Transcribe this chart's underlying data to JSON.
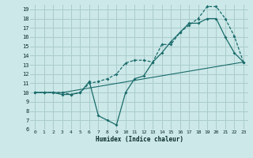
{
  "xlabel": "Humidex (Indice chaleur)",
  "xlim": [
    -0.5,
    23.5
  ],
  "ylim": [
    6,
    19.5
  ],
  "xticks": [
    0,
    1,
    2,
    3,
    4,
    5,
    6,
    7,
    8,
    9,
    10,
    11,
    12,
    13,
    14,
    15,
    16,
    17,
    18,
    19,
    20,
    21,
    22,
    23
  ],
  "yticks": [
    6,
    7,
    8,
    9,
    10,
    11,
    12,
    13,
    14,
    15,
    16,
    17,
    18,
    19
  ],
  "bg_color": "#cce8e8",
  "line_color": "#1a6b6b",
  "grid_color": "#aacccc",
  "line1_x": [
    0,
    3,
    23
  ],
  "line1_y": [
    10,
    10,
    13.3
  ],
  "line2_x": [
    0,
    1,
    2,
    3,
    4,
    5,
    6,
    7,
    8,
    9,
    10,
    11,
    12,
    13,
    14,
    15,
    16,
    17,
    18,
    19,
    20,
    21,
    22,
    23
  ],
  "line2_y": [
    10,
    10,
    10,
    10,
    9.8,
    10.0,
    11.0,
    11.2,
    11.5,
    12.0,
    13.2,
    13.5,
    13.5,
    13.3,
    15.2,
    15.2,
    16.5,
    17.3,
    18.0,
    19.3,
    19.3,
    18.0,
    16.1,
    13.3
  ],
  "line3_x": [
    0,
    1,
    2,
    3,
    4,
    5,
    6,
    7,
    8,
    9,
    10,
    11,
    12,
    13,
    14,
    15,
    16,
    17,
    18,
    19,
    20,
    21,
    22,
    23
  ],
  "line3_y": [
    10,
    10,
    10,
    9.8,
    9.8,
    10.0,
    11.2,
    7.5,
    7.0,
    6.5,
    10.0,
    11.5,
    11.8,
    13.3,
    14.3,
    15.5,
    16.5,
    17.5,
    17.5,
    18.0,
    18.0,
    16.0,
    14.3,
    13.3
  ]
}
